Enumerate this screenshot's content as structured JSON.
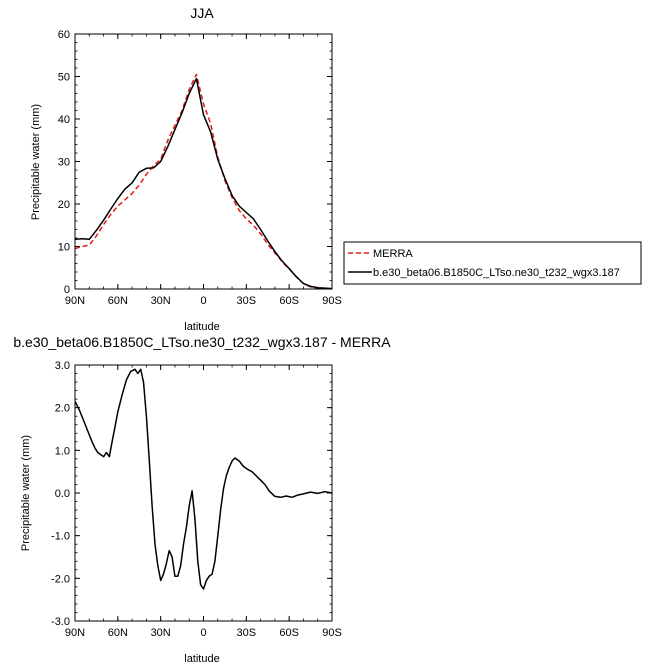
{
  "chart_data": [
    {
      "type": "line",
      "title": "JJA",
      "xlabel": "latitude",
      "ylabel": "Precipitable water (mm)",
      "xlim": [
        90,
        -90
      ],
      "ylim": [
        0,
        60
      ],
      "xticks": [
        90,
        60,
        30,
        0,
        -30,
        -60,
        -90
      ],
      "xtick_labels": [
        "90N",
        "60N",
        "30N",
        "0",
        "30S",
        "60S",
        "90S"
      ],
      "yticks": [
        0,
        10,
        20,
        30,
        40,
        50,
        60
      ],
      "ytick_labels": [
        "0",
        "10",
        "20",
        "30",
        "40",
        "50",
        "60"
      ],
      "legend_position": "right, outside plot",
      "series": [
        {
          "name": "MERRA",
          "color": "#e41a1c",
          "dash": "dashed",
          "x": [
            90,
            85,
            80,
            75,
            70,
            65,
            60,
            55,
            50,
            45,
            40,
            35,
            30,
            25,
            20,
            15,
            10,
            5,
            0,
            -5,
            -10,
            -15,
            -20,
            -25,
            -30,
            -35,
            -40,
            -45,
            -50,
            -55,
            -60,
            -65,
            -70,
            -75,
            -80,
            -85,
            -90
          ],
          "y": [
            9.5,
            10.0,
            10.3,
            12.5,
            15.2,
            17.5,
            19.5,
            21.0,
            22.5,
            24.5,
            27.0,
            29.0,
            30.5,
            35.0,
            38.5,
            42.0,
            47.0,
            50.5,
            43.5,
            39.0,
            31.0,
            25.5,
            21.5,
            18.5,
            16.5,
            15.0,
            13.0,
            10.5,
            8.5,
            6.5,
            4.7,
            2.9,
            1.3,
            0.5,
            0.2,
            0.1,
            0.1
          ]
        },
        {
          "name": "b.e30_beta06.B1850C_LTso.ne30_t232_wgx3.187",
          "color": "#000000",
          "dash": "solid",
          "x": [
            90,
            85,
            80,
            75,
            70,
            65,
            60,
            55,
            50,
            45,
            40,
            35,
            30,
            25,
            20,
            15,
            10,
            5,
            0,
            -5,
            -10,
            -15,
            -20,
            -25,
            -30,
            -35,
            -40,
            -45,
            -50,
            -55,
            -60,
            -65,
            -70,
            -75,
            -80,
            -85,
            -90
          ],
          "y": [
            11.7,
            11.8,
            11.7,
            13.8,
            16.2,
            18.8,
            21.3,
            23.5,
            25.0,
            27.5,
            28.4,
            28.5,
            30.0,
            33.5,
            37.5,
            41.5,
            46.0,
            49.5,
            41.0,
            37.0,
            30.5,
            26.0,
            22.0,
            19.5,
            18.0,
            16.5,
            14.0,
            11.3,
            8.8,
            6.6,
            4.8,
            2.9,
            1.3,
            0.6,
            0.3,
            0.2,
            0.1
          ]
        }
      ]
    },
    {
      "type": "line",
      "title": "b.e30_beta06.B1850C_LTso.ne30_t232_wgx3.187 - MERRA",
      "xlabel": "latitude",
      "ylabel": "Precipitable water (mm)",
      "xlim": [
        90,
        -90
      ],
      "ylim": [
        -3.0,
        3.0
      ],
      "xticks": [
        90,
        60,
        30,
        0,
        -30,
        -60,
        -90
      ],
      "xtick_labels": [
        "90N",
        "60N",
        "30N",
        "0",
        "30S",
        "60S",
        "90S"
      ],
      "yticks": [
        -3.0,
        -2.0,
        -1.0,
        0.0,
        1.0,
        2.0,
        3.0
      ],
      "ytick_labels": [
        "-3.0",
        "-2.0",
        "-1.0",
        "0.0",
        "1.0",
        "2.0",
        "3.0"
      ],
      "series": [
        {
          "color": "#000000",
          "dash": "solid",
          "x": [
            90,
            87,
            84,
            81,
            78,
            76,
            74,
            72,
            70,
            68,
            66,
            64,
            62,
            60,
            57,
            54,
            51,
            48,
            46,
            44,
            42,
            40,
            38,
            36,
            34,
            32,
            30,
            28,
            26,
            24,
            22,
            20,
            18,
            16,
            14,
            12,
            10,
            8,
            6,
            4,
            2,
            0,
            -2,
            -4,
            -6,
            -8,
            -10,
            -12,
            -14,
            -16,
            -18,
            -20,
            -22,
            -25,
            -28,
            -31,
            -34,
            -37,
            -40,
            -43,
            -46,
            -50,
            -54,
            -58,
            -62,
            -66,
            -70,
            -75,
            -80,
            -85,
            -90
          ],
          "y": [
            2.15,
            1.95,
            1.7,
            1.45,
            1.2,
            1.05,
            0.95,
            0.9,
            0.85,
            0.95,
            0.85,
            1.2,
            1.55,
            1.9,
            2.3,
            2.65,
            2.85,
            2.9,
            2.8,
            2.9,
            2.6,
            1.8,
            0.8,
            -0.3,
            -1.2,
            -1.7,
            -2.05,
            -1.9,
            -1.65,
            -1.35,
            -1.5,
            -1.95,
            -1.95,
            -1.7,
            -1.2,
            -0.8,
            -0.3,
            0.05,
            -0.6,
            -1.6,
            -2.15,
            -2.25,
            -2.05,
            -1.95,
            -1.9,
            -1.6,
            -1.0,
            -0.4,
            0.1,
            0.4,
            0.6,
            0.75,
            0.82,
            0.75,
            0.62,
            0.55,
            0.5,
            0.4,
            0.3,
            0.2,
            0.05,
            -0.08,
            -0.1,
            -0.07,
            -0.1,
            -0.05,
            -0.02,
            0.02,
            -0.01,
            0.03,
            0.0
          ]
        }
      ]
    }
  ]
}
